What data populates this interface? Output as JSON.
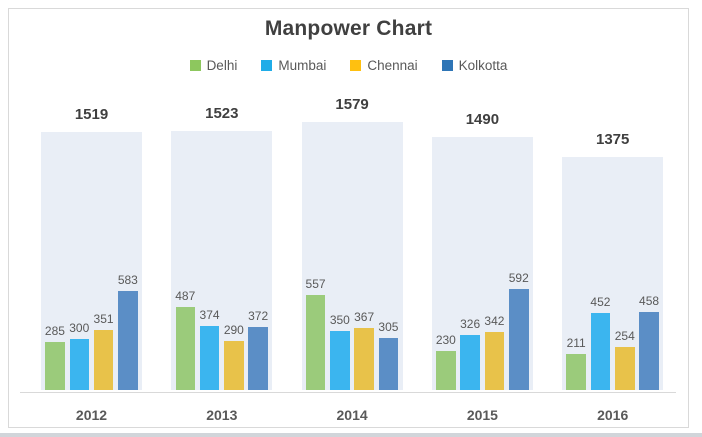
{
  "title": "Manpower Chart",
  "chart_data": {
    "type": "bar",
    "title": "Manpower Chart",
    "categories": [
      "2012",
      "2013",
      "2014",
      "2015",
      "2016"
    ],
    "series": [
      {
        "name": "Delhi",
        "color": "#9BCB7B",
        "legend_color": "#8DC75E",
        "values": [
          285,
          487,
          557,
          230,
          211
        ]
      },
      {
        "name": "Mumbai",
        "color": "#3BB5EF",
        "legend_color": "#1FACE8",
        "values": [
          300,
          374,
          350,
          326,
          452
        ]
      },
      {
        "name": "Chennai",
        "color": "#E8C24A",
        "legend_color": "#FFC010",
        "values": [
          351,
          290,
          367,
          342,
          254
        ]
      },
      {
        "name": "Kolkotta",
        "color": "#5B8EC6",
        "legend_color": "#2E75B6",
        "values": [
          583,
          372,
          305,
          592,
          458
        ]
      }
    ],
    "group_totals": [
      1519,
      1523,
      1579,
      1490,
      1375
    ],
    "total_bar_color": "#E9EEF6",
    "axis_color": "#D9D9D9",
    "text_color_dark": "#3F3F3F",
    "text_color_label": "#595959",
    "legend_position": "top",
    "grid": false,
    "value_labels": true,
    "ylim": [
      0,
      1675
    ]
  }
}
